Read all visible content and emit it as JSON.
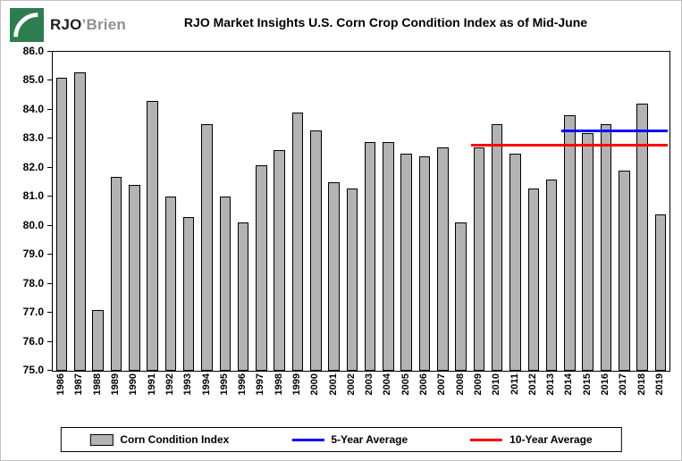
{
  "logo": {
    "brand_rjo": "RJO",
    "brand_brien": "’Brien",
    "square_color": "#2e7d4f"
  },
  "chart_data": {
    "type": "bar",
    "title": "RJO Market Insights U.S. Corn Crop Condition Index as of Mid-June",
    "xlabel": "",
    "ylabel": "",
    "categories": [
      "1986",
      "1987",
      "1988",
      "1989",
      "1990",
      "1991",
      "1992",
      "1993",
      "1994",
      "1995",
      "1996",
      "1997",
      "1998",
      "1999",
      "2000",
      "2001",
      "2002",
      "2003",
      "2004",
      "2005",
      "2006",
      "2007",
      "2008",
      "2009",
      "2010",
      "2011",
      "2012",
      "2013",
      "2014",
      "2015",
      "2016",
      "2017",
      "2018",
      "2019"
    ],
    "values": [
      85.1,
      85.3,
      77.1,
      81.7,
      81.4,
      84.3,
      81.0,
      80.3,
      83.5,
      81.0,
      80.1,
      82.1,
      82.6,
      83.9,
      83.3,
      81.5,
      81.3,
      82.9,
      82.9,
      82.5,
      82.4,
      82.7,
      80.1,
      82.7,
      83.5,
      82.5,
      81.3,
      81.6,
      83.8,
      83.2,
      83.5,
      81.9,
      84.2,
      80.4
    ],
    "ylim": [
      75.0,
      86.0
    ],
    "ytick_step": 1.0,
    "grid": false,
    "bar_color": "#b3b3b3",
    "bar_border_color": "#000000",
    "overlays": [
      {
        "name": "5-Year Average",
        "value": 83.3,
        "start_category": "2014",
        "end_category": "2019",
        "color": "#0000ff"
      },
      {
        "name": "10-Year Average",
        "value": 82.8,
        "start_category": "2009",
        "end_category": "2019",
        "color": "#ff0000"
      }
    ],
    "legend_position": "bottom",
    "legend": [
      {
        "label": "Corn Condition Index",
        "swatch": "bar",
        "color": "#b3b3b3"
      },
      {
        "label": "5-Year Average",
        "swatch": "line",
        "color": "#0000ff"
      },
      {
        "label": "10-Year Average",
        "swatch": "line",
        "color": "#ff0000"
      }
    ]
  }
}
